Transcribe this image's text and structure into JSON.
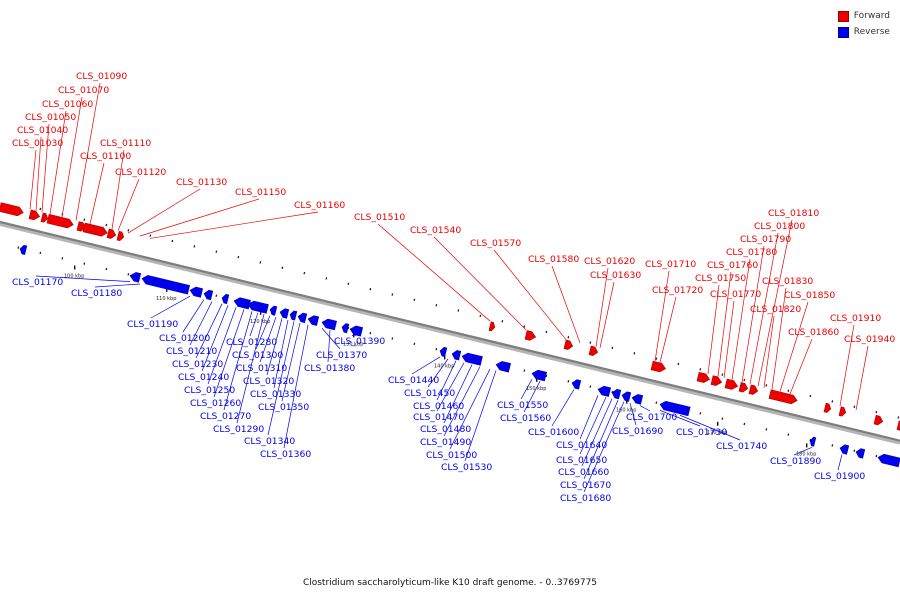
{
  "caption": "Clostridium saccharolyticum-like K10 draft genome. - 0..3769775",
  "legend": [
    {
      "label": "Forward",
      "color": "#ee0000"
    },
    {
      "label": "Reverse",
      "color": "#0000ee"
    }
  ],
  "colors": {
    "forward": "#ee0000",
    "reverse": "#0000ee",
    "backbone": "#7d7d7d"
  },
  "ticks": [
    "100 kbp",
    "110 kbp",
    "120 kbp",
    "130 kbp",
    "140 kbp",
    "150 kbp",
    "160 kbp",
    "170 kbp",
    "180 kbp"
  ],
  "forward_genes": [
    "CLS_01030",
    "CLS_01040",
    "CLS_01050",
    "CLS_01060",
    "CLS_01070",
    "CLS_01090",
    "CLS_01100",
    "CLS_01110",
    "CLS_01120",
    "CLS_01130",
    "CLS_01150",
    "CLS_01160",
    "CLS_01510",
    "CLS_01540",
    "CLS_01570",
    "CLS_01580",
    "CLS_01620",
    "CLS_01630",
    "CLS_01710",
    "CLS_01720",
    "CLS_01750",
    "CLS_01760",
    "CLS_01770",
    "CLS_01780",
    "CLS_01790",
    "CLS_01800",
    "CLS_01810",
    "CLS_01820",
    "CLS_01830",
    "CLS_01850",
    "CLS_01860",
    "CLS_01910",
    "CLS_01940"
  ],
  "reverse_genes": [
    "CLS_01170",
    "CLS_01180",
    "CLS_01190",
    "CLS_01200",
    "CLS_01210",
    "CLS_01230",
    "CLS_01240",
    "CLS_01250",
    "CLS_01260",
    "CLS_01270",
    "CLS_01280",
    "CLS_01290",
    "CLS_01300",
    "CLS_01310",
    "CLS_01320",
    "CLS_01330",
    "CLS_01340",
    "CLS_01350",
    "CLS_01360",
    "CLS_01370",
    "CLS_01380",
    "CLS_01390",
    "CLS_01440",
    "CLS_01450",
    "CLS_01460",
    "CLS_01470",
    "CLS_01480",
    "CLS_01490",
    "CLS_01500",
    "CLS_01530",
    "CLS_01550",
    "CLS_01560",
    "CLS_01600",
    "CLS_01640",
    "CLS_01650",
    "CLS_01660",
    "CLS_01670",
    "CLS_01680",
    "CLS_01690",
    "CLS_01700",
    "CLS_01730",
    "CLS_01740",
    "CLS_01890",
    "CLS_01900"
  ]
}
